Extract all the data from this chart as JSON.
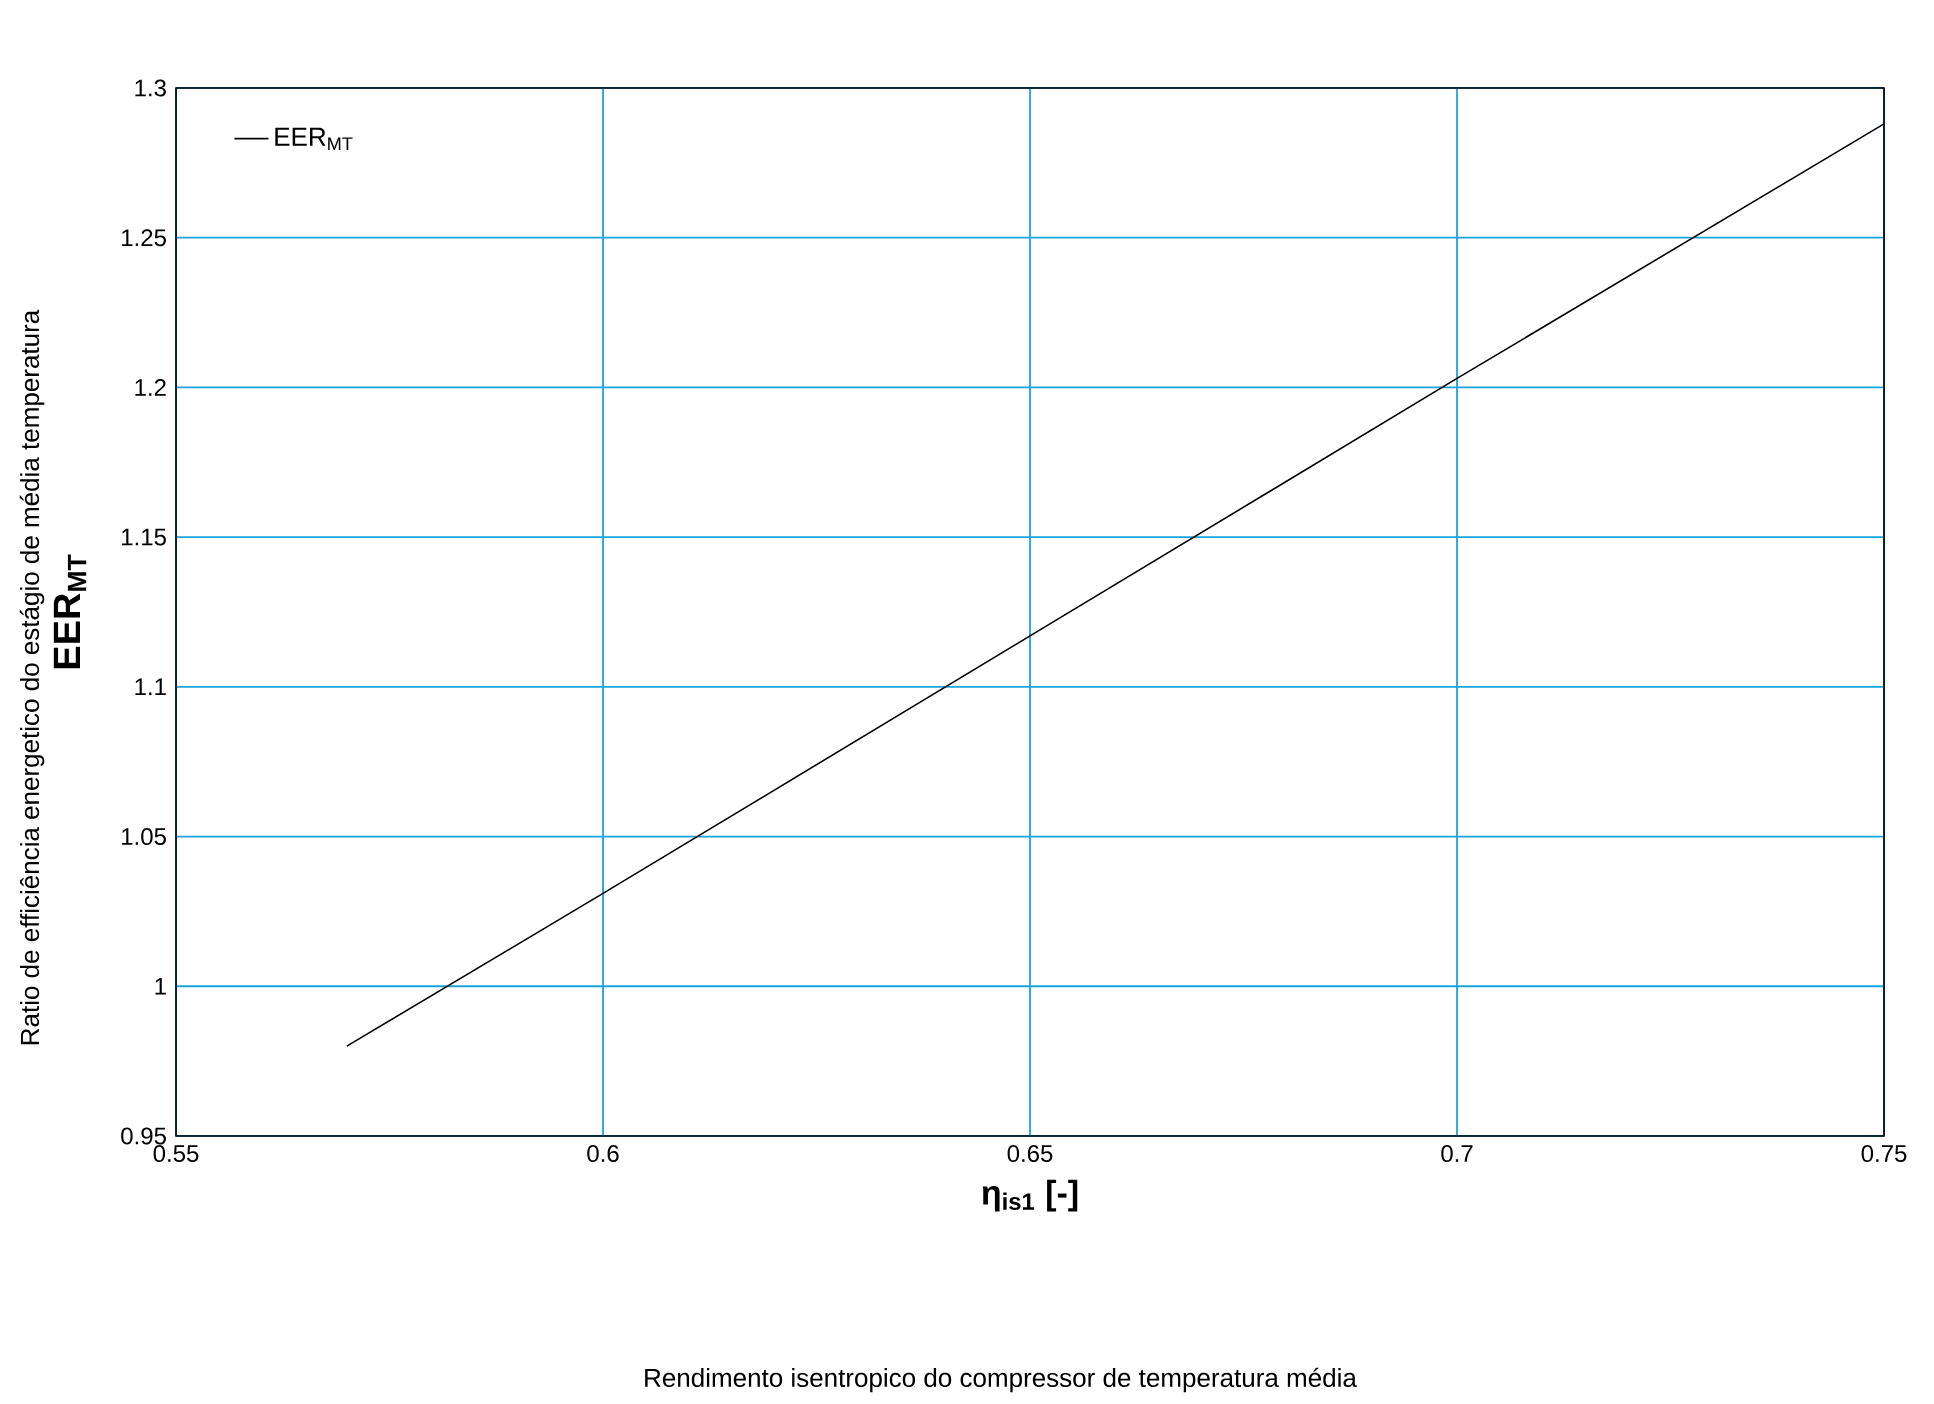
{
  "chart_data": {
    "type": "line",
    "xlabel": "η$_{is1}$  [-]",
    "ylabel": "EER$_{MT}$",
    "x": [
      0.57,
      0.6,
      0.65,
      0.7,
      0.75
    ],
    "series": [
      {
        "name": "EER$_{MT}$",
        "color": "#000000",
        "values": [
          0.98,
          1.031,
          1.117,
          1.203,
          1.288
        ]
      }
    ],
    "xlim": [
      0.55,
      0.75
    ],
    "xticks": [
      0.55,
      0.6,
      0.65,
      0.7,
      0.75
    ],
    "ylim": [
      0.95,
      1.3
    ],
    "yticks": [
      0.95,
      1,
      1.05,
      1.1,
      1.15,
      1.2,
      1.25,
      1.3
    ],
    "grid": true,
    "legend": "top left",
    "marker": "none",
    "line_style": "solid",
    "annotations": [
      "Ratio de efficiência energetico do estágio de média temperatura",
      "Rendimento isentropico do compressor de temperatura média"
    ]
  }
}
